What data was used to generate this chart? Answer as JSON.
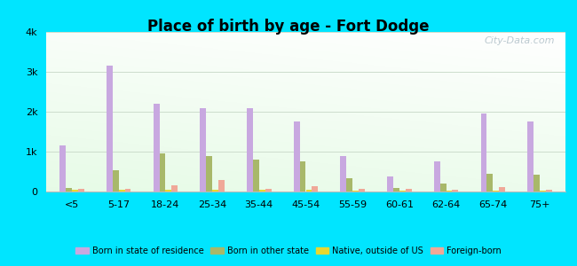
{
  "title": "Place of birth by age - Fort Dodge",
  "categories": [
    "<5",
    "5-17",
    "18-24",
    "25-34",
    "35-44",
    "45-54",
    "55-59",
    "60-61",
    "62-64",
    "65-74",
    "75+"
  ],
  "born_in_state": [
    1150,
    3150,
    2200,
    2100,
    2080,
    1750,
    900,
    380,
    750,
    1950,
    1750
  ],
  "born_other_state": [
    100,
    530,
    950,
    900,
    800,
    750,
    330,
    100,
    200,
    450,
    430
  ],
  "native_outside_us": [
    40,
    40,
    40,
    40,
    40,
    40,
    30,
    30,
    30,
    30,
    30
  ],
  "foreign_born": [
    70,
    70,
    150,
    280,
    60,
    140,
    60,
    60,
    40,
    110,
    40
  ],
  "colors": {
    "born_in_state": "#c8a8e0",
    "born_other_state": "#a8b86a",
    "native_outside_us": "#e8d830",
    "foreign_born": "#f0a898"
  },
  "ylim": [
    0,
    4000
  ],
  "yticks": [
    0,
    1000,
    2000,
    3000,
    4000
  ],
  "ytick_labels": [
    "0",
    "1k",
    "2k",
    "3k",
    "4k"
  ],
  "outer_background": "#00e5ff",
  "grid_color": "#ccddcc",
  "watermark": "City-Data.com",
  "legend_labels": [
    "Born in state of residence",
    "Born in other state",
    "Native, outside of US",
    "Foreign-born"
  ]
}
